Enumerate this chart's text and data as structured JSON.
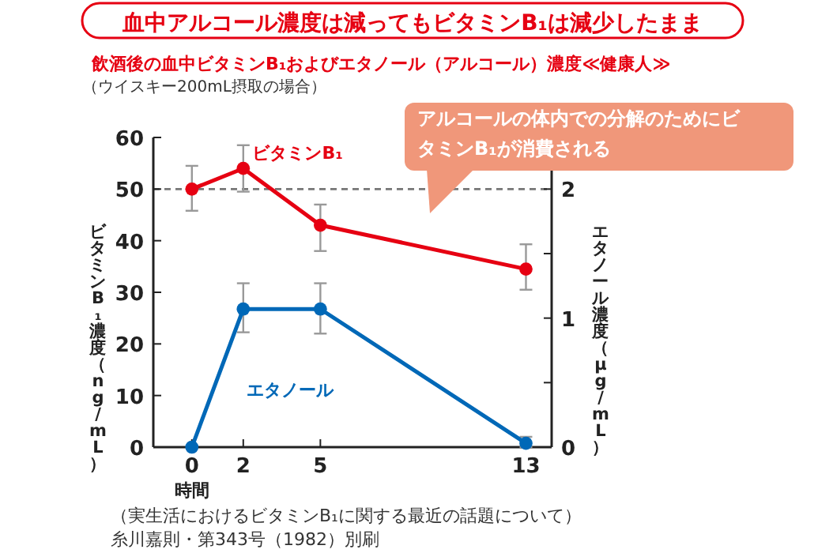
{
  "chart_data": {
    "type": "line",
    "title": "血中アルコール濃度は減ってもビタミンB₁は減少したまま",
    "subtitle": "飲酒後の血中ビタミンB₁およびエタノール（アルコール）濃度≪健康人≫",
    "x": [
      0,
      2,
      5,
      13
    ],
    "xlim": [
      -1.5,
      14
    ],
    "xticks": [
      0,
      2,
      5,
      13
    ],
    "xlabel": "時間",
    "ylim": [
      0,
      60
    ],
    "yticks": [
      0,
      10,
      20,
      30,
      40,
      50,
      60
    ],
    "ylabel": "ビタミンB₁濃度（ng/mL）",
    "y2lim": [
      0,
      2.4
    ],
    "y2ticks": [
      0,
      {
        "value": 0.5,
        "label": null
      },
      1,
      {
        "value": 1.5,
        "label": null
      },
      2
    ],
    "y2label": "エタノール濃度（μg/mL）",
    "marker": "circle",
    "line_style": "solid",
    "grid": false,
    "series": [
      {
        "name": "ビタミンB₁",
        "color": "#e60012",
        "values": [
          50,
          54,
          43,
          34.5
        ],
        "errors": [
          [
            45.8,
            54.5
          ],
          [
            49.5,
            58.5
          ],
          [
            38,
            47
          ],
          [
            30.5,
            39.3
          ]
        ]
      },
      {
        "name": "エタノール",
        "color": "#0068b7",
        "axis": "y2",
        "values": [
          0,
          1.07,
          1.07,
          0.03
        ],
        "errors": [
          null,
          [
            0.89,
            1.27
          ],
          [
            0.88,
            1.27
          ],
          [
            0,
            0.08
          ]
        ]
      }
    ],
    "ref_lines": [
      {
        "axis": "y",
        "value": 50,
        "color": "#777777",
        "line_style": "dashed"
      }
    ],
    "annotations": [
      "（ウイスキー200mL摂取の場合）",
      "アルコールの体内での分解のためにビタミンB₁が消費される",
      "（実生活におけるビタミンB₁に関する最近の話題について）",
      "糸川嘉則・第343号（1982）別刷"
    ]
  }
}
